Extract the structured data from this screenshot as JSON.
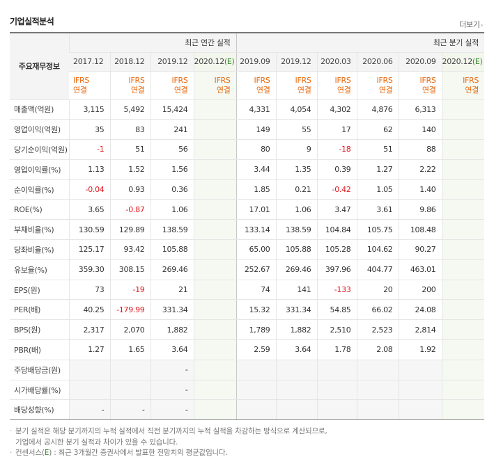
{
  "header": {
    "title": "기업실적분석",
    "more_label": "더보기"
  },
  "table": {
    "row_head_label": "주요재무정보",
    "annual_group_label": "최근 연간 실적",
    "quarter_group_label": "최근 분기 실적",
    "periods": [
      "2017.12",
      "2018.12",
      "2019.12",
      "2020.12(E)",
      "2019.09",
      "2019.12",
      "2020.03",
      "2020.06",
      "2020.09",
      "2020.12(E)"
    ],
    "accounting": [
      {
        "line1": "IFRS",
        "line2": "연결"
      },
      {
        "line1": "IFRS",
        "line2": "연결"
      },
      {
        "line1": "IFRS",
        "line2": "연결"
      },
      {
        "line1": "IFRS",
        "line2": "연결"
      },
      {
        "line1": "IFRS",
        "line2": "연결"
      },
      {
        "line1": "IFRS",
        "line2": "연결"
      },
      {
        "line1": "IFRS",
        "line2": "연결"
      },
      {
        "line1": "IFRS",
        "line2": "연결"
      },
      {
        "line1": "IFRS",
        "line2": "연결"
      },
      {
        "line1": "IFRS",
        "line2": "연결"
      }
    ],
    "rows": [
      {
        "label": "매출액(억원)",
        "values": [
          "3,115",
          "5,492",
          "15,424",
          "",
          "4,331",
          "4,054",
          "4,302",
          "4,876",
          "6,313",
          ""
        ]
      },
      {
        "label": "영업이익(억원)",
        "values": [
          "35",
          "83",
          "241",
          "",
          "149",
          "55",
          "17",
          "62",
          "140",
          ""
        ]
      },
      {
        "label": "당기순이익(억원)",
        "values": [
          "-1",
          "51",
          "56",
          "",
          "80",
          "9",
          "-18",
          "51",
          "88",
          ""
        ]
      },
      {
        "label": "영업이익률(%)",
        "values": [
          "1.13",
          "1.52",
          "1.56",
          "",
          "3.44",
          "1.35",
          "0.39",
          "1.27",
          "2.22",
          ""
        ]
      },
      {
        "label": "순이익률(%)",
        "values": [
          "-0.04",
          "0.93",
          "0.36",
          "",
          "1.85",
          "0.21",
          "-0.42",
          "1.05",
          "1.40",
          ""
        ]
      },
      {
        "label": "ROE(%)",
        "values": [
          "3.65",
          "-0.87",
          "1.06",
          "",
          "17.01",
          "1.06",
          "3.47",
          "3.61",
          "9.86",
          ""
        ]
      },
      {
        "label": "부채비율(%)",
        "values": [
          "130.59",
          "129.89",
          "138.59",
          "",
          "133.14",
          "138.59",
          "104.84",
          "105.75",
          "108.48",
          ""
        ]
      },
      {
        "label": "당좌비율(%)",
        "values": [
          "125.17",
          "93.42",
          "105.88",
          "",
          "65.00",
          "105.88",
          "105.28",
          "104.62",
          "90.27",
          ""
        ]
      },
      {
        "label": "유보율(%)",
        "values": [
          "359.30",
          "308.15",
          "269.46",
          "",
          "252.67",
          "269.46",
          "397.96",
          "404.77",
          "463.01",
          ""
        ]
      },
      {
        "label": "EPS(원)",
        "values": [
          "73",
          "-19",
          "21",
          "",
          "74",
          "141",
          "-133",
          "20",
          "200",
          ""
        ]
      },
      {
        "label": "PER(배)",
        "values": [
          "40.25",
          "-179.99",
          "331.34",
          "",
          "15.32",
          "331.34",
          "54.85",
          "66.02",
          "24.08",
          ""
        ]
      },
      {
        "label": "BPS(원)",
        "values": [
          "2,317",
          "2,070",
          "1,882",
          "",
          "1,789",
          "1,882",
          "2,510",
          "2,523",
          "2,814",
          ""
        ]
      },
      {
        "label": "PBR(배)",
        "values": [
          "1.27",
          "1.65",
          "3.64",
          "",
          "2.59",
          "3.64",
          "1.78",
          "2.08",
          "1.92",
          ""
        ]
      },
      {
        "label": "주당배당금(원)",
        "values": [
          "",
          "",
          "-",
          "",
          "",
          "",
          "",
          "",
          "",
          ""
        ]
      },
      {
        "label": "시가배당률(%)",
        "values": [
          "",
          "",
          "-",
          "",
          "",
          "",
          "",
          "",
          "",
          ""
        ]
      },
      {
        "label": "배당성향(%)",
        "values": [
          "-",
          "-",
          "-",
          "",
          "",
          "",
          "",
          "",
          "",
          ""
        ]
      }
    ]
  },
  "notes": {
    "line1": "분기 실적은 해당 분기까지의 누적 실적에서 직전 분기까지의 누적 실적을 차감하는 방식으로 계산되므로,",
    "line1b": "기업에서 공시한 분기 실적과 차이가 있을 수 있습니다.",
    "line2_prefix": "컨센서스(",
    "line2_mark": "E",
    "line2_suffix": ") : 최근 3개월간 증권사에서 발표한 전망치의 평균값입니다."
  },
  "colors": {
    "negative": "#e0191f",
    "ifrs": "#e86a10",
    "estimate": "#3a8a2e"
  }
}
